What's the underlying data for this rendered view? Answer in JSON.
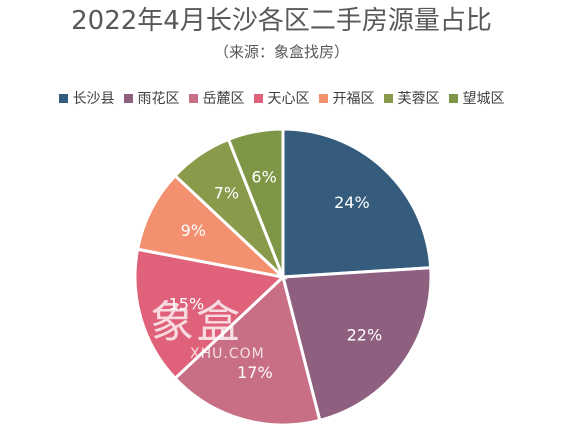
{
  "chart_data": {
    "type": "pie",
    "title": "2022年4月长沙各区二手房源量占比",
    "subtitle": "（来源：象盒找房）",
    "legend_position": "top",
    "slices": [
      {
        "label": "长沙县",
        "value": 24,
        "label_text": "24%",
        "color": "#355C7D"
      },
      {
        "label": "雨花区",
        "value": 22,
        "label_text": "22%",
        "color": "#8E5F7F"
      },
      {
        "label": "岳麓区",
        "value": 17,
        "label_text": "17%",
        "color": "#C96F85"
      },
      {
        "label": "天心区",
        "value": 15,
        "label_text": "15%",
        "color": "#E0627A"
      },
      {
        "label": "开福区",
        "value": 9,
        "label_text": "9%",
        "color": "#F3906F"
      },
      {
        "label": "芙蓉区",
        "value": 7,
        "label_text": "7%",
        "color": "#8A9A4B"
      },
      {
        "label": "望城区",
        "value": 6,
        "label_text": "6%",
        "color": "#7E9746"
      }
    ]
  },
  "watermark": {
    "logo_text": "象盒",
    "sub_text": "XHU.COM"
  }
}
